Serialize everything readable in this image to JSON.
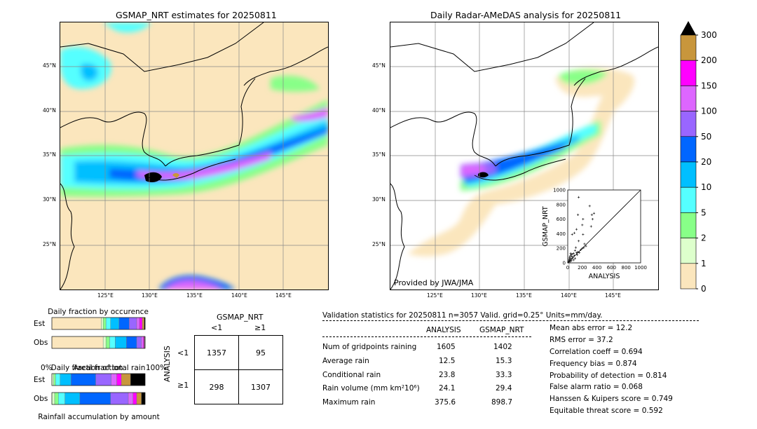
{
  "left_map": {
    "title": "GSMAP_NRT estimates for 20250811",
    "lat_labels": [
      "45°N",
      "40°N",
      "35°N",
      "30°N",
      "25°N"
    ],
    "lon_labels": [
      "125°E",
      "130°E",
      "135°E",
      "140°E",
      "145°E"
    ]
  },
  "right_map": {
    "title": "Daily Radar-AMeDAS analysis for 20250811",
    "lat_labels": [
      "45°N",
      "40°N",
      "35°N",
      "30°N",
      "25°N"
    ],
    "lon_labels": [
      "125°E",
      "130°E",
      "135°E",
      "140°E",
      "145°E"
    ],
    "credit": "Provided by JWA/JMA"
  },
  "colorbar": {
    "labels": [
      "300",
      "200",
      "150",
      "100",
      "50",
      "20",
      "10",
      "5",
      "2",
      "1",
      "0"
    ],
    "colors": [
      "#c8963c",
      "#ff00ff",
      "#dd66ff",
      "#9966ff",
      "#0066ff",
      "#00bfff",
      "#55ffff",
      "#88ff88",
      "#ddffcc",
      "#fbe6bd"
    ]
  },
  "chart_data": [
    {
      "type": "scatter",
      "title": "",
      "xlabel": "ANALYSIS",
      "ylabel": "GSMAP_NRT",
      "xlim": [
        0,
        1000
      ],
      "ylim": [
        0,
        1000
      ],
      "xticks": [
        "0",
        "200",
        "400",
        "600",
        "800",
        "1000"
      ],
      "yticks": [
        "0",
        "200",
        "400",
        "600",
        "800",
        "1000"
      ],
      "points": [
        [
          150,
          900
        ],
        [
          300,
          780
        ],
        [
          330,
          660
        ],
        [
          360,
          680
        ],
        [
          140,
          660
        ],
        [
          210,
          600
        ],
        [
          340,
          600
        ],
        [
          200,
          520
        ],
        [
          320,
          500
        ],
        [
          120,
          460
        ],
        [
          90,
          410
        ],
        [
          60,
          390
        ],
        [
          210,
          390
        ],
        [
          150,
          300
        ],
        [
          230,
          260
        ],
        [
          250,
          230
        ],
        [
          200,
          200
        ],
        [
          180,
          180
        ],
        [
          220,
          210
        ],
        [
          110,
          210
        ],
        [
          100,
          170
        ],
        [
          80,
          130
        ],
        [
          60,
          120
        ],
        [
          50,
          90
        ],
        [
          40,
          60
        ],
        [
          30,
          40
        ],
        [
          20,
          20
        ],
        [
          10,
          10
        ],
        [
          70,
          80
        ],
        [
          90,
          100
        ],
        [
          120,
          140
        ],
        [
          140,
          150
        ],
        [
          40,
          130
        ],
        [
          30,
          90
        ],
        [
          60,
          60
        ],
        [
          20,
          50
        ],
        [
          15,
          30
        ],
        [
          80,
          40
        ],
        [
          100,
          60
        ],
        [
          50,
          30
        ],
        [
          130,
          110
        ],
        [
          160,
          140
        ],
        [
          25,
          70
        ],
        [
          45,
          110
        ],
        [
          35,
          20
        ]
      ]
    },
    {
      "type": "bar",
      "title": "Daily fraction by occurence",
      "xlabel": "Areal fraction",
      "rows": [
        "Est",
        "Obs"
      ],
      "categories": [
        "0-1",
        "1-2",
        "2-5",
        "5-10",
        "10-20",
        "20-50",
        "50-100",
        "100-150",
        "150-200",
        "200-300",
        ">300"
      ],
      "series": [
        {
          "name": "Est",
          "values": [
            0.53,
            0.02,
            0.03,
            0.05,
            0.09,
            0.11,
            0.08,
            0.03,
            0.03,
            0.02,
            0.01
          ]
        },
        {
          "name": "Obs",
          "values": [
            0.55,
            0.03,
            0.04,
            0.06,
            0.12,
            0.11,
            0.05,
            0.02,
            0.01,
            0.005,
            0.005
          ]
        }
      ],
      "axis_left": "0%",
      "axis_right": "100%"
    },
    {
      "type": "bar",
      "title": "Daily fraction of total rain",
      "xlabel": "Rainfall accumulation by amount",
      "rows": [
        "Est",
        "Obs"
      ],
      "categories": [
        "0-1",
        "1-2",
        "2-5",
        "5-10",
        "10-20",
        "20-50",
        "50-100",
        "100-150",
        "150-200",
        "200-300",
        ">300"
      ],
      "series": [
        {
          "name": "Est",
          "values": [
            0.0,
            0.02,
            0.02,
            0.05,
            0.12,
            0.27,
            0.17,
            0.06,
            0.05,
            0.1,
            0.16
          ]
        },
        {
          "name": "Obs",
          "values": [
            0.0,
            0.03,
            0.04,
            0.07,
            0.16,
            0.33,
            0.19,
            0.05,
            0.04,
            0.05,
            0.04
          ]
        }
      ]
    }
  ],
  "contingency": {
    "title": "GSMAP_NRT",
    "col_labels": [
      "<1",
      "≥1"
    ],
    "row_labels": [
      "<1",
      "≥1"
    ],
    "ylabel": "ANALYSIS",
    "cells": [
      [
        "1357",
        "95"
      ],
      [
        "298",
        "1307"
      ]
    ]
  },
  "validation": {
    "header": "Validation statistics for 20250811  n=3057 Valid. grid=0.25° Units=mm/day.",
    "col_analysis": "ANALYSIS",
    "col_gsmap": "GSMAP_NRT",
    "rows": [
      {
        "label": "Num of gridpoints raining",
        "analysis": "1605",
        "gsmap": "1402"
      },
      {
        "label": "Average rain",
        "analysis": "12.5",
        "gsmap": "15.3"
      },
      {
        "label": "Conditional rain",
        "analysis": "23.8",
        "gsmap": "33.3"
      },
      {
        "label": "Rain volume (mm km²10⁶)",
        "analysis": "24.1",
        "gsmap": "29.4"
      },
      {
        "label": "Maximum rain",
        "analysis": "375.6",
        "gsmap": "898.7"
      }
    ],
    "scores": [
      "Mean abs error =   12.2",
      "RMS error =   37.2",
      "Correlation coeff =  0.694",
      "Frequency bias =  0.874",
      "Probability of detection =  0.814",
      "False alarm ratio =  0.068",
      "Hanssen & Kuipers score =  0.749",
      "Equitable threat score =  0.592"
    ]
  }
}
